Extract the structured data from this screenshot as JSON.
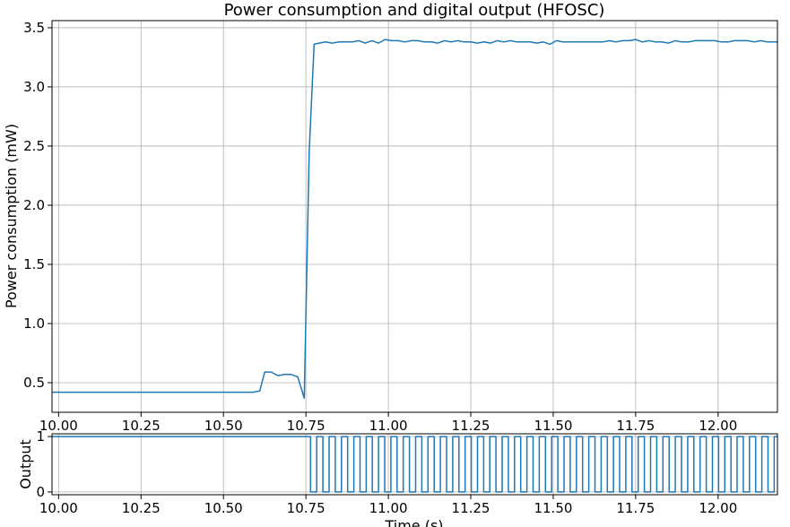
{
  "colors": {
    "series": "#1f77b4",
    "grid": "#b0b0b0"
  },
  "chart_data": [
    {
      "type": "line",
      "title": "Power consumption and digital output (HFOSC)",
      "xlabel": "",
      "ylabel": "Power consumption (mW)",
      "xlim": [
        9.98,
        12.18
      ],
      "ylim": [
        0.25,
        3.56
      ],
      "grid": true,
      "xticks": [
        10.0,
        10.25,
        10.5,
        10.75,
        11.0,
        11.25,
        11.5,
        11.75,
        12.0
      ],
      "xtick_labels": [
        "10.00",
        "10.25",
        "10.50",
        "10.75",
        "11.00",
        "11.25",
        "11.50",
        "11.75",
        "12.00"
      ],
      "yticks": [
        0.5,
        1.0,
        1.5,
        2.0,
        2.5,
        3.0,
        3.5
      ],
      "ytick_labels": [
        "0.5",
        "1.0",
        "1.5",
        "2.0",
        "2.5",
        "3.0",
        "3.5"
      ],
      "series": [
        {
          "x": [
            9.98,
            10.0,
            10.05,
            10.1,
            10.15,
            10.2,
            10.25,
            10.3,
            10.35,
            10.4,
            10.45,
            10.5,
            10.55,
            10.59,
            10.61,
            10.625,
            10.645,
            10.665,
            10.685,
            10.705,
            10.725,
            10.745,
            10.76,
            10.775,
            10.79,
            10.81,
            10.83,
            10.85,
            10.87,
            10.89,
            10.91,
            10.93,
            10.95,
            10.97,
            10.99,
            11.01,
            11.03,
            11.05,
            11.07,
            11.09,
            11.11,
            11.13,
            11.15,
            11.17,
            11.19,
            11.21,
            11.23,
            11.25,
            11.27,
            11.29,
            11.31,
            11.33,
            11.35,
            11.37,
            11.39,
            11.41,
            11.43,
            11.45,
            11.47,
            11.49,
            11.51,
            11.53,
            11.55,
            11.57,
            11.59,
            11.61,
            11.63,
            11.65,
            11.67,
            11.69,
            11.71,
            11.73,
            11.75,
            11.77,
            11.79,
            11.81,
            11.83,
            11.85,
            11.87,
            11.89,
            11.91,
            11.93,
            11.95,
            11.97,
            11.99,
            12.01,
            12.03,
            12.05,
            12.07,
            12.09,
            12.11,
            12.13,
            12.15,
            12.18
          ],
          "y": [
            0.42,
            0.42,
            0.42,
            0.42,
            0.42,
            0.42,
            0.42,
            0.42,
            0.42,
            0.42,
            0.42,
            0.42,
            0.42,
            0.42,
            0.43,
            0.59,
            0.59,
            0.56,
            0.57,
            0.57,
            0.55,
            0.37,
            2.45,
            3.36,
            3.37,
            3.38,
            3.37,
            3.38,
            3.38,
            3.38,
            3.39,
            3.37,
            3.39,
            3.37,
            3.4,
            3.39,
            3.39,
            3.38,
            3.39,
            3.39,
            3.38,
            3.38,
            3.37,
            3.39,
            3.38,
            3.39,
            3.38,
            3.38,
            3.37,
            3.38,
            3.37,
            3.39,
            3.38,
            3.39,
            3.38,
            3.38,
            3.38,
            3.37,
            3.38,
            3.36,
            3.39,
            3.38,
            3.38,
            3.38,
            3.38,
            3.38,
            3.38,
            3.38,
            3.39,
            3.38,
            3.39,
            3.39,
            3.4,
            3.38,
            3.39,
            3.38,
            3.38,
            3.37,
            3.39,
            3.38,
            3.38,
            3.39,
            3.39,
            3.39,
            3.39,
            3.38,
            3.38,
            3.39,
            3.39,
            3.39,
            3.38,
            3.39,
            3.38,
            3.38
          ]
        }
      ]
    },
    {
      "type": "line",
      "title": "",
      "xlabel": "Time (s)",
      "ylabel": "Output",
      "xlim": [
        9.98,
        12.18
      ],
      "ylim": [
        -0.05,
        1.05
      ],
      "grid": true,
      "xticks": [
        10.0,
        10.25,
        10.5,
        10.75,
        11.0,
        11.25,
        11.5,
        11.75,
        12.0
      ],
      "xtick_labels": [
        "10.00",
        "10.25",
        "10.50",
        "10.75",
        "11.00",
        "11.25",
        "11.50",
        "11.75",
        "12.00"
      ],
      "yticks": [
        0,
        1
      ],
      "ytick_labels": [
        "0",
        "1"
      ],
      "step": {
        "initial_value": 1,
        "switch_on_time": 10.764,
        "period": 0.0375,
        "high_fraction": 0.5,
        "end": 12.18
      }
    }
  ]
}
